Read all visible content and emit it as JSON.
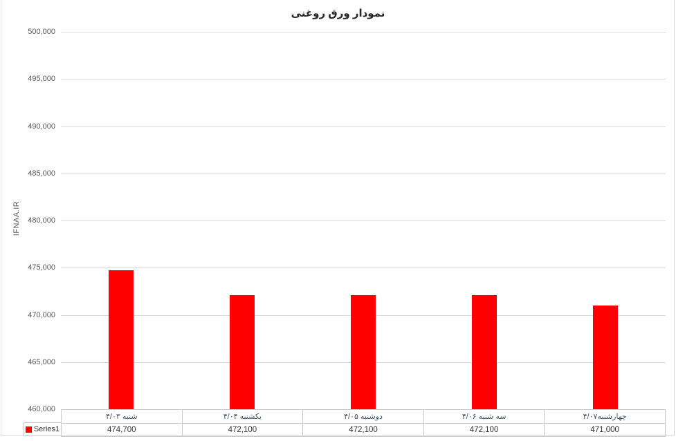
{
  "title": "نمودار ورق روغنی",
  "y_axis_title": "IFNAA.IR",
  "legend": {
    "label": "Series1",
    "swatch_color": "#ff0000"
  },
  "chart_data": {
    "type": "bar",
    "title": "نمودار ورق روغنی",
    "xlabel": "",
    "ylabel": "IFNAA.IR",
    "categories": [
      "شنبه ۴/۰۳",
      "یکشنبه ۴/۰۴",
      "دوشنبه ۴/۰۵",
      "سه شنبه ۴/۰۶",
      "چهارشنبه۴/۰۷"
    ],
    "series": [
      {
        "name": "Series1",
        "color": "#ff0000",
        "values": [
          474700,
          472100,
          472100,
          472100,
          471000
        ]
      }
    ],
    "value_labels": [
      "474,700",
      "472,100",
      "472,100",
      "472,100",
      "471,000"
    ],
    "ylim": [
      460000,
      500000
    ],
    "ytick_step": 5000,
    "ytick_labels": [
      "500,000",
      "495,000",
      "490,000",
      "485,000",
      "480,000",
      "475,000",
      "470,000",
      "465,000",
      "460,000"
    ],
    "grid": "horizontal",
    "legend_position": "bottom-left-table",
    "colors": {
      "bar": "#ff0000",
      "gridline": "#d9d9d9",
      "axis_text": "#595959",
      "category_text": "#44546a",
      "value_text": "#333333",
      "table_border": "#c9c9c9"
    }
  }
}
